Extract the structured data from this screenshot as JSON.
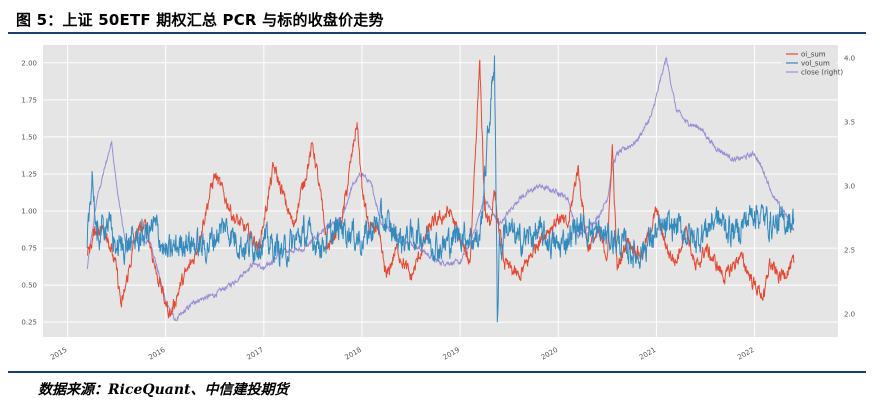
{
  "figure": {
    "title": "图 5：上证 50ETF 期权汇总 PCR 与标的收盘价走势",
    "source": "数据来源：RiceQuant、中信建投期货"
  },
  "chart_data": {
    "type": "line",
    "title": "",
    "xlabel": "",
    "ylabel": "",
    "ylabel_right": "",
    "grid": true,
    "legend_position": "top-right",
    "xlim": [
      2014.75,
      2022.85
    ],
    "ylim": [
      0.15,
      2.12
    ],
    "ylim_right": [
      1.82,
      4.1
    ],
    "x_ticks": [
      "2015",
      "2016",
      "2017",
      "2018",
      "2019",
      "2020",
      "2021",
      "2022"
    ],
    "y_ticks": [
      "0.25",
      "0.50",
      "0.75",
      "1.00",
      "1.25",
      "1.50",
      "1.75",
      "2.00"
    ],
    "y_ticks_right": [
      "2.0",
      "2.5",
      "3.0",
      "3.5",
      "4.0"
    ],
    "series": [
      {
        "name": "oi_sum",
        "axis": "left",
        "color": "#e24a33",
        "x": [
          2015.2,
          2015.3,
          2015.4,
          2015.5,
          2015.55,
          2015.7,
          2015.8,
          2015.9,
          2016.0,
          2016.05,
          2016.15,
          2016.3,
          2016.5,
          2016.7,
          2016.85,
          2016.95,
          2017.1,
          2017.3,
          2017.5,
          2017.6,
          2017.65,
          2017.8,
          2017.95,
          2018.0,
          2018.08,
          2018.15,
          2018.25,
          2018.35,
          2018.5,
          2018.7,
          2018.9,
          2019.0,
          2019.1,
          2019.2,
          2019.25,
          2019.3,
          2019.35,
          2019.45,
          2019.6,
          2019.8,
          2020.0,
          2020.1,
          2020.2,
          2020.3,
          2020.4,
          2020.5,
          2020.55,
          2020.6,
          2020.7,
          2020.85,
          2021.0,
          2021.1,
          2021.2,
          2021.3,
          2021.4,
          2021.5,
          2021.7,
          2021.85,
          2022.0,
          2022.1,
          2022.15,
          2022.25,
          2022.4
        ],
        "values": [
          0.7,
          0.9,
          0.85,
          0.6,
          0.35,
          0.85,
          0.9,
          0.6,
          0.38,
          0.3,
          0.5,
          0.7,
          1.25,
          0.95,
          0.85,
          0.75,
          1.3,
          0.9,
          1.45,
          1.0,
          0.75,
          0.95,
          1.6,
          1.15,
          0.85,
          0.9,
          0.55,
          0.75,
          0.55,
          0.9,
          1.0,
          0.8,
          0.65,
          2.02,
          1.0,
          0.9,
          1.1,
          0.65,
          0.55,
          0.8,
          0.95,
          0.9,
          1.3,
          0.75,
          0.85,
          0.7,
          1.45,
          0.6,
          0.8,
          0.7,
          1.0,
          0.75,
          0.65,
          0.9,
          0.6,
          0.75,
          0.55,
          0.7,
          0.5,
          0.42,
          0.65,
          0.55,
          0.65
        ]
      },
      {
        "name": "vol_sum",
        "axis": "left",
        "color": "#348abd",
        "x": [
          2015.2,
          2015.25,
          2015.3,
          2015.4,
          2015.5,
          2015.7,
          2015.9,
          2016.0,
          2016.2,
          2016.4,
          2016.6,
          2016.8,
          2017.0,
          2017.2,
          2017.4,
          2017.6,
          2017.8,
          2018.0,
          2018.2,
          2018.4,
          2018.6,
          2018.8,
          2019.0,
          2019.2,
          2019.35,
          2019.38,
          2019.4,
          2019.42,
          2019.45,
          2019.6,
          2019.8,
          2020.0,
          2020.2,
          2020.4,
          2020.6,
          2020.8,
          2021.0,
          2021.2,
          2021.4,
          2021.6,
          2021.8,
          2022.0,
          2022.2,
          2022.4
        ],
        "values": [
          0.75,
          1.27,
          0.8,
          0.95,
          0.75,
          0.8,
          0.9,
          0.7,
          0.8,
          0.75,
          0.9,
          0.75,
          0.8,
          0.72,
          0.85,
          0.78,
          0.9,
          0.8,
          0.95,
          0.8,
          0.85,
          0.75,
          0.85,
          0.8,
          2.05,
          0.25,
          0.85,
          0.7,
          0.9,
          0.8,
          0.85,
          0.75,
          0.9,
          0.85,
          0.8,
          0.7,
          0.85,
          0.9,
          0.8,
          0.95,
          0.85,
          1.0,
          0.9,
          0.95
        ]
      },
      {
        "name": "close (right)",
        "axis": "right",
        "color": "#988ed5",
        "x": [
          2015.2,
          2015.3,
          2015.4,
          2015.45,
          2015.5,
          2015.6,
          2015.7,
          2015.85,
          2016.0,
          2016.1,
          2016.3,
          2016.5,
          2016.7,
          2016.9,
          2017.0,
          2017.2,
          2017.4,
          2017.6,
          2017.8,
          2017.9,
          2018.0,
          2018.1,
          2018.2,
          2018.4,
          2018.6,
          2018.8,
          2019.0,
          2019.1,
          2019.25,
          2019.4,
          2019.6,
          2019.8,
          2020.0,
          2020.1,
          2020.2,
          2020.4,
          2020.5,
          2020.55,
          2020.6,
          2020.8,
          2020.95,
          2021.1,
          2021.2,
          2021.3,
          2021.45,
          2021.6,
          2021.8,
          2022.0,
          2022.1,
          2022.2,
          2022.3,
          2022.4
        ],
        "values": [
          2.35,
          2.9,
          3.2,
          3.35,
          3.0,
          2.5,
          2.6,
          2.55,
          2.1,
          1.95,
          2.1,
          2.15,
          2.25,
          2.4,
          2.35,
          2.5,
          2.5,
          2.65,
          2.75,
          3.0,
          3.1,
          3.0,
          2.7,
          2.6,
          2.5,
          2.4,
          2.4,
          2.55,
          2.9,
          2.7,
          2.9,
          3.0,
          2.95,
          2.9,
          2.6,
          2.75,
          2.9,
          3.15,
          3.25,
          3.35,
          3.55,
          4.0,
          3.6,
          3.5,
          3.45,
          3.3,
          3.2,
          3.25,
          3.1,
          2.9,
          2.8,
          2.65
        ]
      }
    ]
  }
}
